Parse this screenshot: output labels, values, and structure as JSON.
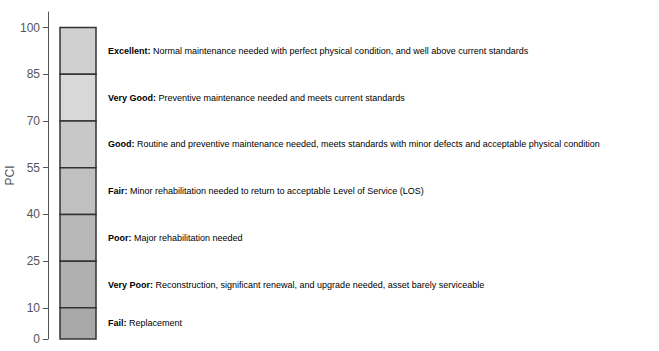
{
  "chart_data": {
    "type": "bar",
    "ylabel": "PCI",
    "ylim": [
      0,
      105
    ],
    "yticks": [
      0,
      10,
      25,
      40,
      55,
      70,
      85,
      100
    ],
    "grid": false,
    "tick_labels": "y",
    "segments": [
      {
        "label": "Excellent:",
        "desc": "Normal maintenance needed with perfect physical condition, and well above current standards",
        "range": [
          85,
          100
        ],
        "color": "#d0d0d0"
      },
      {
        "label": "Very Good:",
        "desc": "Preventive maintenance needed and meets current standards",
        "range": [
          70,
          85
        ],
        "color": "#d8d8d8"
      },
      {
        "label": "Good:",
        "desc": "Routine and preventive maintenance needed, meets standards with minor defects and acceptable physical condition",
        "range": [
          55,
          70
        ],
        "color": "#c8c8c8"
      },
      {
        "label": "Fair:",
        "desc": "Minor rehabilitation needed to return to acceptable Level of Service (LOS)",
        "range": [
          40,
          55
        ],
        "color": "#c0c0c0"
      },
      {
        "label": "Poor:",
        "desc": "Major rehabilitation needed",
        "range": [
          25,
          40
        ],
        "color": "#b8b8b8"
      },
      {
        "label": "Very Poor:",
        "desc": "Reconstruction, significant renewal, and upgrade needed, asset barely serviceable",
        "range": [
          10,
          25
        ],
        "color": "#b0b0b0"
      },
      {
        "label": "Fail:",
        "desc": "Replacement",
        "range": [
          0,
          10
        ],
        "color": "#a8a8a8"
      }
    ]
  }
}
